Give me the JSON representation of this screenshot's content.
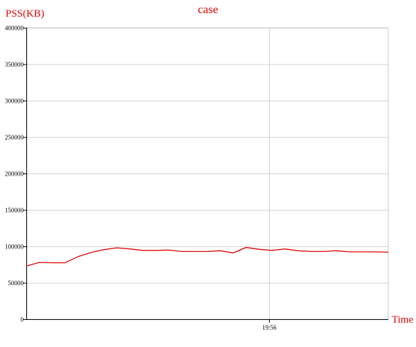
{
  "chart_data": {
    "type": "line",
    "title": "case",
    "ylabel": "PSS(KB)",
    "xlabel": "Time",
    "ylim": [
      0,
      400000
    ],
    "yticks": [
      0,
      50000,
      100000,
      150000,
      200000,
      250000,
      300000,
      350000,
      400000
    ],
    "ytick_labels": [
      "0",
      "50000",
      "100000",
      "150000",
      "200000",
      "250000",
      "300000",
      "350000",
      "400000"
    ],
    "xtick_labels": [
      "19:56"
    ],
    "grid": true,
    "series": [
      {
        "name": "PSS",
        "color": "#e00000",
        "values": [
          73000,
          78000,
          77500,
          77500,
          86000,
          91500,
          95500,
          98000,
          96500,
          94500,
          94500,
          95000,
          93000,
          93000,
          93000,
          94000,
          91000,
          98500,
          96000,
          94500,
          96500,
          94000,
          93000,
          93000,
          94000,
          92500,
          92500,
          92500,
          92000
        ]
      }
    ]
  }
}
